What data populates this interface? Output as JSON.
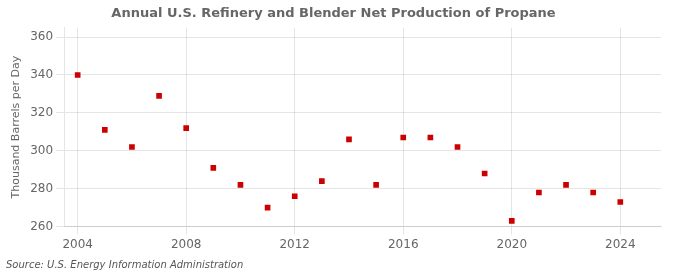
{
  "chart_data": {
    "type": "scatter",
    "title": "Annual U.S. Refinery and Blender Net Production of Propane",
    "ylabel": "Thousand Barrels per Day",
    "annotations": [
      "Source: U.S. Energy Information Administration"
    ],
    "x": [
      2004,
      2005,
      2006,
      2007,
      2008,
      2009,
      2010,
      2011,
      2012,
      2013,
      2014,
      2015,
      2016,
      2017,
      2018,
      2019,
      2020,
      2021,
      2022,
      2023,
      2024
    ],
    "values": [
      340,
      311,
      302,
      329,
      312,
      291,
      282,
      270,
      276,
      284,
      306,
      282,
      307,
      307,
      302,
      288,
      263,
      278,
      282,
      278,
      273
    ],
    "color": "#cc0000",
    "marker": "square",
    "xlim": [
      2003.5,
      2025.5
    ],
    "xticks": [
      2004,
      2008,
      2012,
      2016,
      2020,
      2024
    ],
    "ylim": [
      260,
      365
    ],
    "yticks": [
      260,
      280,
      300,
      320,
      340,
      360
    ],
    "grid": true
  }
}
